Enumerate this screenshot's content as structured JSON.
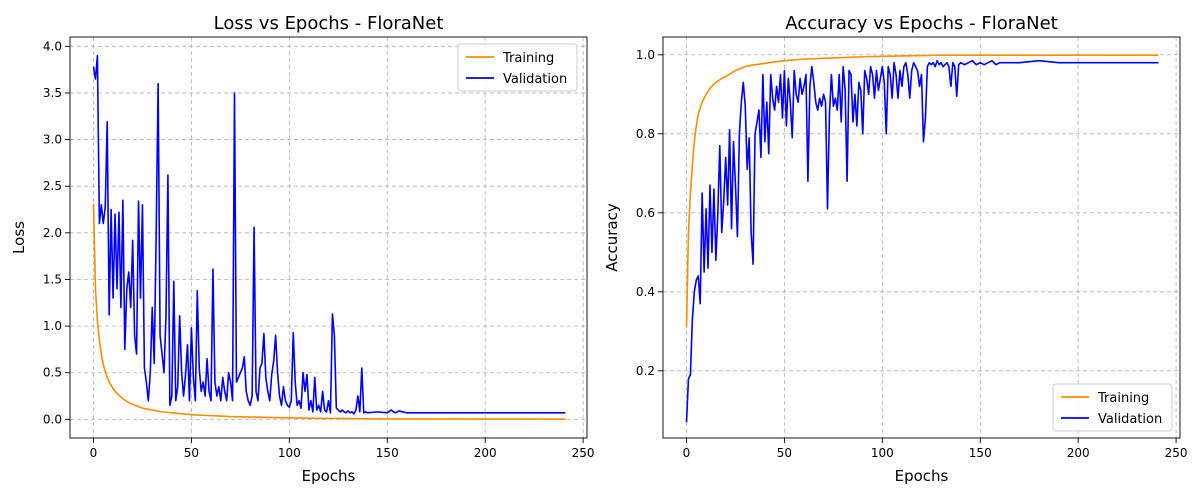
{
  "chart_data": [
    {
      "type": "line",
      "title": "Loss vs Epochs - FloraNet",
      "xlabel": "Epochs",
      "ylabel": "Loss",
      "xlim": [
        -12,
        252
      ],
      "ylim": [
        -0.2,
        4.1
      ],
      "xticks": [
        0,
        50,
        100,
        150,
        200,
        250
      ],
      "yticks": [
        0.0,
        0.5,
        1.0,
        1.5,
        2.0,
        2.5,
        3.0,
        3.5,
        4.0
      ],
      "ytick_format": 1,
      "grid": true,
      "legend": "top-right",
      "series": [
        {
          "name": "Training",
          "color": "#ff8c00",
          "x": [
            0,
            1,
            2,
            3,
            4,
            5,
            6,
            8,
            10,
            12,
            15,
            18,
            20,
            25,
            30,
            35,
            40,
            50,
            60,
            70,
            80,
            90,
            100,
            110,
            120,
            130,
            140,
            160,
            200,
            241
          ],
          "y": [
            2.31,
            1.4,
            1.05,
            0.85,
            0.7,
            0.59,
            0.51,
            0.4,
            0.33,
            0.28,
            0.22,
            0.18,
            0.16,
            0.12,
            0.1,
            0.08,
            0.07,
            0.05,
            0.04,
            0.03,
            0.025,
            0.02,
            0.015,
            0.012,
            0.01,
            0.008,
            0.006,
            0.004,
            0.003,
            0.002
          ]
        },
        {
          "name": "Validation",
          "color": "#0000ff",
          "x": [
            0,
            1,
            2,
            3,
            4,
            5,
            6,
            7,
            8,
            9,
            10,
            11,
            12,
            13,
            14,
            15,
            16,
            17,
            18,
            19,
            20,
            21,
            22,
            23,
            24,
            25,
            26,
            27,
            28,
            29,
            30,
            31,
            32,
            33,
            34,
            35,
            36,
            37,
            38,
            39,
            40,
            41,
            42,
            43,
            44,
            45,
            46,
            47,
            48,
            49,
            50,
            51,
            52,
            53,
            54,
            55,
            56,
            57,
            58,
            59,
            60,
            61,
            62,
            63,
            64,
            65,
            66,
            67,
            68,
            69,
            70,
            71,
            72,
            73,
            74,
            75,
            76,
            77,
            78,
            79,
            80,
            81,
            82,
            83,
            84,
            85,
            86,
            87,
            88,
            89,
            90,
            91,
            92,
            93,
            94,
            95,
            96,
            97,
            98,
            99,
            100,
            101,
            102,
            103,
            104,
            105,
            106,
            107,
            108,
            109,
            110,
            111,
            112,
            113,
            114,
            115,
            116,
            117,
            118,
            119,
            120,
            121,
            122,
            123,
            124,
            125,
            126,
            127,
            128,
            129,
            130,
            131,
            132,
            133,
            134,
            135,
            136,
            137,
            138,
            139,
            140,
            145,
            150,
            152,
            154,
            156,
            160,
            170,
            180,
            190,
            200,
            220,
            241
          ],
          "y": [
            3.78,
            3.65,
            3.9,
            2.1,
            2.3,
            2.1,
            2.28,
            3.19,
            1.12,
            2.25,
            1.3,
            2.2,
            1.4,
            2.22,
            1.2,
            2.35,
            0.75,
            1.4,
            1.58,
            1.2,
            1.92,
            0.9,
            0.7,
            2.34,
            1.3,
            2.3,
            0.55,
            0.4,
            0.2,
            0.5,
            1.2,
            0.6,
            1.98,
            3.6,
            0.9,
            0.7,
            0.5,
            1.1,
            2.62,
            0.15,
            0.25,
            1.48,
            0.2,
            0.35,
            1.11,
            0.5,
            0.25,
            0.48,
            0.8,
            0.2,
            0.98,
            0.45,
            0.2,
            1.38,
            0.55,
            0.3,
            0.4,
            0.25,
            0.65,
            0.3,
            0.2,
            1.61,
            0.4,
            0.25,
            0.35,
            0.2,
            0.45,
            0.3,
            0.2,
            0.5,
            0.4,
            0.2,
            3.5,
            0.4,
            0.45,
            0.5,
            0.55,
            0.67,
            0.3,
            0.2,
            0.15,
            0.25,
            2.06,
            0.3,
            0.2,
            0.55,
            0.6,
            0.92,
            0.45,
            0.3,
            0.2,
            0.48,
            0.62,
            0.9,
            0.5,
            0.25,
            0.15,
            0.35,
            0.2,
            0.15,
            0.13,
            0.2,
            0.93,
            0.4,
            0.15,
            0.2,
            0.12,
            0.5,
            0.3,
            0.48,
            0.1,
            0.2,
            0.08,
            0.45,
            0.1,
            0.15,
            0.08,
            0.3,
            0.1,
            0.08,
            0.2,
            0.07,
            1.13,
            0.9,
            0.12,
            0.1,
            0.08,
            0.1,
            0.08,
            0.07,
            0.09,
            0.07,
            0.08,
            0.06,
            0.1,
            0.25,
            0.08,
            0.55,
            0.07,
            0.08,
            0.07,
            0.08,
            0.07,
            0.1,
            0.07,
            0.09,
            0.07,
            0.07,
            0.07,
            0.07,
            0.07,
            0.07,
            0.07
          ]
        }
      ]
    },
    {
      "type": "line",
      "title": "Accuracy vs Epochs - FloraNet",
      "xlabel": "Epochs",
      "ylabel": "Accuracy",
      "xlim": [
        -12,
        252
      ],
      "ylim": [
        0.03,
        1.045
      ],
      "xticks": [
        0,
        50,
        100,
        150,
        200,
        250
      ],
      "yticks": [
        0.2,
        0.4,
        0.6,
        0.8,
        1.0
      ],
      "ytick_format": 1,
      "grid": true,
      "legend": "bottom-right",
      "series": [
        {
          "name": "Training",
          "color": "#ff8c00",
          "x": [
            0,
            1,
            2,
            3,
            4,
            5,
            6,
            8,
            10,
            12,
            15,
            18,
            20,
            25,
            30,
            35,
            40,
            45,
            50,
            55,
            60,
            70,
            80,
            90,
            100,
            110,
            120,
            130,
            140,
            160,
            200,
            241
          ],
          "y": [
            0.31,
            0.55,
            0.65,
            0.72,
            0.78,
            0.82,
            0.85,
            0.88,
            0.9,
            0.915,
            0.93,
            0.94,
            0.945,
            0.96,
            0.97,
            0.975,
            0.978,
            0.982,
            0.985,
            0.987,
            0.989,
            0.991,
            0.993,
            0.995,
            0.996,
            0.997,
            0.998,
            0.999,
            0.999,
            0.999,
            0.999,
            0.999
          ]
        },
        {
          "name": "Validation",
          "color": "#0000ff",
          "x": [
            0,
            1,
            2,
            3,
            4,
            5,
            6,
            7,
            8,
            9,
            10,
            11,
            12,
            13,
            14,
            15,
            16,
            17,
            18,
            19,
            20,
            21,
            22,
            23,
            24,
            25,
            26,
            27,
            28,
            29,
            30,
            31,
            32,
            33,
            34,
            35,
            36,
            37,
            38,
            39,
            40,
            41,
            42,
            43,
            44,
            45,
            46,
            47,
            48,
            49,
            50,
            51,
            52,
            53,
            54,
            55,
            56,
            57,
            58,
            59,
            60,
            61,
            62,
            63,
            64,
            65,
            66,
            67,
            68,
            69,
            70,
            71,
            72,
            73,
            74,
            75,
            76,
            77,
            78,
            79,
            80,
            81,
            82,
            83,
            84,
            85,
            86,
            87,
            88,
            89,
            90,
            91,
            92,
            93,
            94,
            95,
            96,
            97,
            98,
            99,
            100,
            101,
            102,
            103,
            104,
            105,
            106,
            107,
            108,
            109,
            110,
            111,
            112,
            113,
            114,
            115,
            116,
            117,
            118,
            119,
            120,
            121,
            122,
            123,
            124,
            125,
            126,
            127,
            128,
            129,
            130,
            131,
            132,
            133,
            134,
            135,
            136,
            137,
            138,
            139,
            140,
            142,
            144,
            146,
            148,
            150,
            152,
            154,
            156,
            158,
            160,
            170,
            180,
            190,
            200,
            220,
            241
          ],
          "y": [
            0.07,
            0.18,
            0.19,
            0.33,
            0.4,
            0.43,
            0.44,
            0.37,
            0.65,
            0.45,
            0.61,
            0.46,
            0.67,
            0.5,
            0.66,
            0.48,
            0.6,
            0.77,
            0.55,
            0.63,
            0.74,
            0.62,
            0.81,
            0.56,
            0.78,
            0.67,
            0.54,
            0.8,
            0.88,
            0.93,
            0.87,
            0.71,
            0.79,
            0.55,
            0.47,
            0.8,
            0.83,
            0.86,
            0.74,
            0.95,
            0.78,
            0.88,
            0.75,
            0.95,
            0.89,
            0.86,
            0.92,
            0.88,
            0.95,
            0.84,
            0.96,
            0.82,
            0.94,
            0.88,
            0.79,
            0.96,
            0.9,
            0.88,
            0.94,
            0.9,
            0.92,
            0.95,
            0.68,
            0.92,
            0.97,
            0.93,
            0.88,
            0.86,
            0.89,
            0.87,
            0.9,
            0.88,
            0.61,
            0.85,
            0.95,
            0.87,
            0.89,
            0.86,
            0.95,
            0.83,
            0.97,
            0.91,
            0.68,
            0.96,
            0.95,
            0.83,
            0.9,
            0.82,
            0.93,
            0.91,
            0.8,
            0.96,
            0.94,
            0.9,
            0.97,
            0.95,
            0.89,
            0.96,
            0.91,
            0.94,
            0.97,
            0.93,
            0.8,
            0.97,
            0.95,
            0.89,
            0.98,
            0.95,
            0.89,
            0.96,
            0.92,
            0.97,
            0.98,
            0.95,
            0.89,
            0.96,
            0.98,
            0.97,
            0.96,
            0.92,
            0.95,
            0.78,
            0.84,
            0.97,
            0.98,
            0.975,
            0.98,
            0.97,
            0.985,
            0.975,
            0.98,
            0.97,
            0.975,
            0.98,
            0.97,
            0.92,
            0.98,
            0.97,
            0.895,
            0.975,
            0.98,
            0.975,
            0.98,
            0.985,
            0.975,
            0.98,
            0.975,
            0.98,
            0.985,
            0.975,
            0.98,
            0.98,
            0.985,
            0.98,
            0.98,
            0.98,
            0.98
          ]
        }
      ]
    }
  ]
}
